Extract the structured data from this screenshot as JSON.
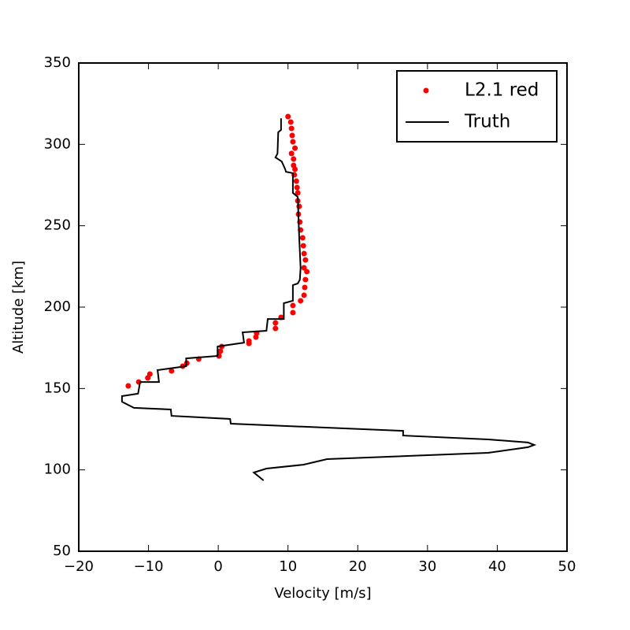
{
  "chart_data": {
    "type": "line",
    "x_label": "Velocity [m/s]",
    "y_label": "Altitude [km]",
    "xlim": [
      -20,
      50
    ],
    "ylim": [
      50,
      350
    ],
    "xticks": [
      {
        "value": -20,
        "label": "−20"
      },
      {
        "value": -10,
        "label": "−10"
      },
      0,
      10,
      20,
      30,
      40,
      50
    ],
    "yticks": [
      50,
      100,
      150,
      200,
      250,
      300,
      350
    ],
    "grid": false,
    "legend": "upper right",
    "series": [
      {
        "name": "L2.1 red",
        "color": "#ff0000",
        "mode": "markers",
        "x": [
          10.0,
          10.4,
          10.5,
          10.6,
          10.7,
          11.0,
          10.5,
          10.8,
          10.8,
          11.0,
          10.9,
          11.2,
          11.3,
          11.4,
          11.4,
          11.6,
          11.5,
          11.7,
          11.8,
          12.1,
          12.2,
          12.3,
          12.5,
          12.3,
          12.7,
          12.5,
          12.4,
          12.3,
          11.8,
          10.7,
          10.7,
          9.0,
          8.2,
          8.2,
          5.5,
          5.4,
          4.4,
          4.4,
          0.5,
          0.3,
          0.1,
          -2.8,
          -4.5,
          -5.1,
          -6.7,
          -9.8,
          -10.1,
          -11.4,
          -12.9
        ],
        "y": [
          317.1,
          313.7,
          309.8,
          305.5,
          301.6,
          297.7,
          294.4,
          291,
          287.1,
          284.7,
          281.3,
          277.4,
          273.5,
          270.2,
          265.3,
          261.9,
          257.1,
          252.3,
          247.4,
          242.6,
          237.7,
          232.9,
          229,
          224.2,
          221.8,
          216.9,
          212.1,
          207.3,
          203.9,
          201,
          196.6,
          193.7,
          190.3,
          186.9,
          184,
          181.6,
          179.2,
          177.7,
          175.8,
          172.9,
          170,
          168.1,
          165.6,
          163.7,
          160.8,
          158.9,
          156.5,
          154,
          151.6
        ]
      },
      {
        "name": "Truth",
        "color": "#000000",
        "mode": "lines",
        "x": [
          9.0,
          9.0,
          8.6,
          8.5,
          8.2,
          9.1,
          9.6,
          9.7,
          10.7,
          10.7,
          11.4,
          11.6,
          11.8,
          11.7,
          11.4,
          10.7,
          10.7,
          9.4,
          9.4,
          7.1,
          6.9,
          3.5,
          3.7,
          -0.1,
          -0.1,
          -4.6,
          -4.6,
          -8.7,
          -8.5,
          -11.2,
          -11.5,
          -13.8,
          -13.8,
          -12.1,
          -6.8,
          -6.7,
          1.7,
          1.8,
          26.5,
          26.5,
          38.7,
          44.4,
          45.3,
          44.4,
          38.7,
          15.6,
          12.2,
          6.9,
          5.1,
          6.5
        ],
        "y": [
          316,
          308.9,
          307.4,
          294.4,
          292,
          289.5,
          284.7,
          283.2,
          282.3,
          270.2,
          267.7,
          243.5,
          224.2,
          216.9,
          214.5,
          213.5,
          203.9,
          202.4,
          192.7,
          192.7,
          185.5,
          184.5,
          178.2,
          175.8,
          170,
          168.5,
          163.7,
          161.3,
          154,
          154,
          146.8,
          145.3,
          141.9,
          138.1,
          137.1,
          133.2,
          131.3,
          128.4,
          124,
          121.1,
          118.7,
          116.8,
          115.3,
          113.9,
          110.5,
          106.6,
          103.2,
          100.8,
          98.4,
          93.5
        ]
      }
    ]
  }
}
